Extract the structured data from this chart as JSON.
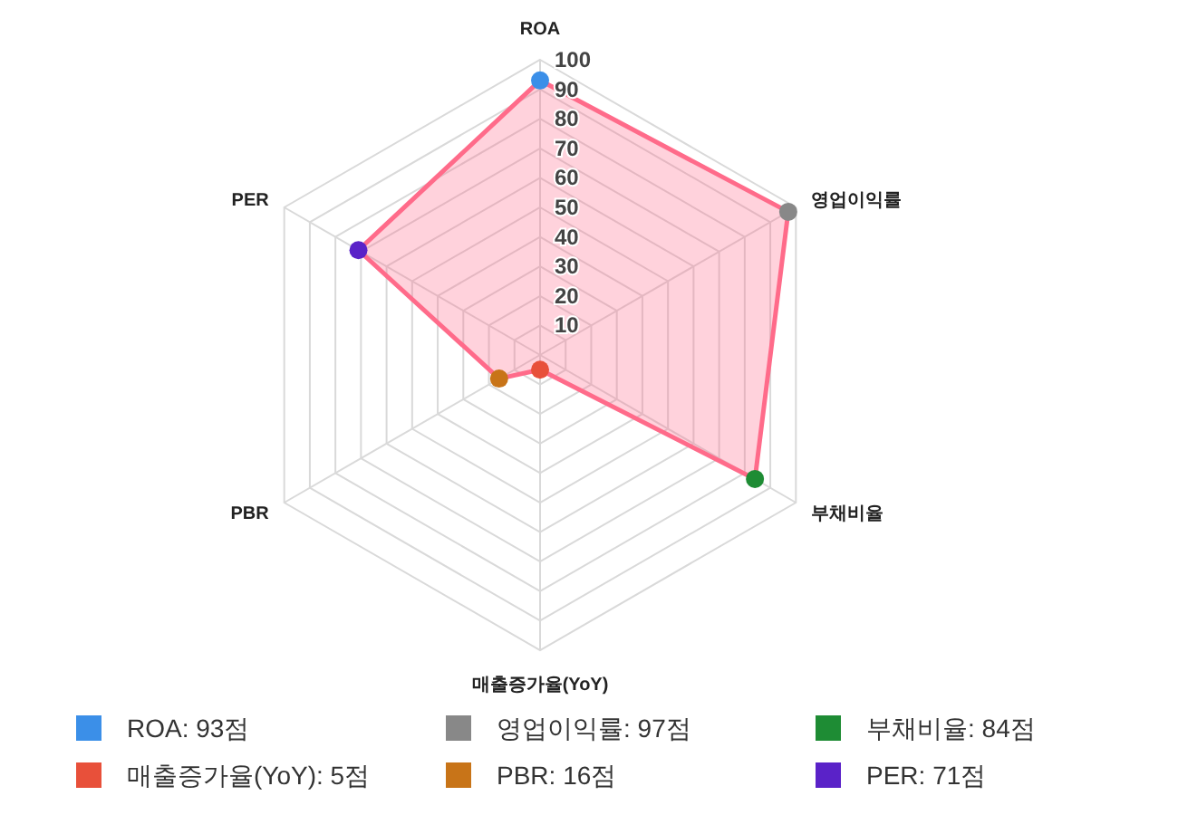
{
  "chart_data": {
    "type": "radar",
    "categories": [
      "ROA",
      "영업이익률",
      "부채비율",
      "매출증가율(YoY)",
      "PBR",
      "PER"
    ],
    "series": [
      {
        "color": "#ff6b8a",
        "values": [
          93,
          97,
          84,
          5,
          16,
          71
        ],
        "colors": [
          "#3b8fe8",
          "#888888",
          "#1e8c34",
          "#e8503a",
          "#c87418",
          "#5a22c8"
        ]
      }
    ],
    "ylim": [
      0,
      100
    ],
    "yticks": [
      10,
      20,
      30,
      40,
      50,
      60,
      70,
      80,
      90,
      100
    ],
    "grid": true,
    "marker": "circle",
    "line_style": "solid",
    "annotations": [
      "ROA: 93점",
      "영업이익률: 97점",
      "부채비율: 84점",
      "매출증가율(YoY): 5점",
      "PBR: 16점",
      "PER: 71점"
    ]
  }
}
